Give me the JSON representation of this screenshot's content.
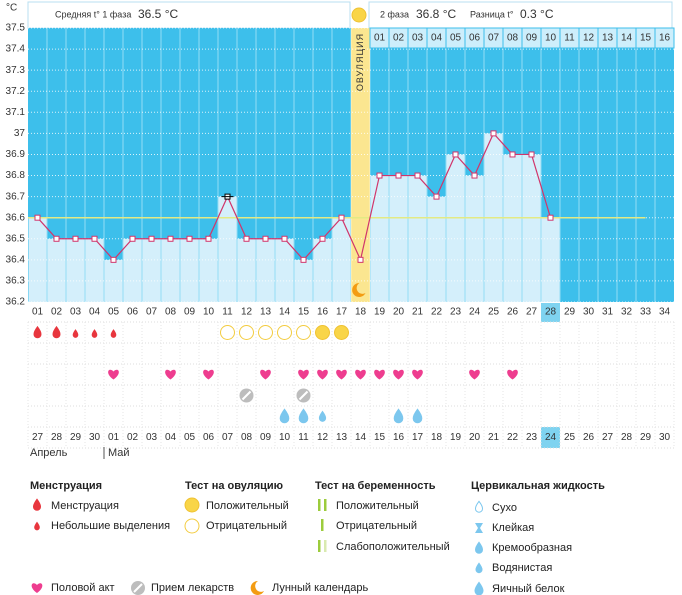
{
  "chart_data": {
    "type": "line",
    "y_unit": "°C",
    "categories": [
      "01",
      "02",
      "03",
      "04",
      "05",
      "06",
      "07",
      "08",
      "09",
      "10",
      "11",
      "12",
      "13",
      "14",
      "15",
      "16",
      "17",
      "18",
      "19",
      "20",
      "21",
      "22",
      "23",
      "24",
      "25",
      "26",
      "27",
      "28",
      "29",
      "30",
      "31",
      "32",
      "33",
      "34"
    ],
    "values": [
      36.6,
      36.5,
      36.5,
      36.5,
      36.4,
      36.5,
      36.5,
      36.5,
      36.5,
      36.5,
      36.7,
      36.5,
      36.5,
      36.5,
      36.4,
      36.5,
      36.6,
      36.4,
      36.8,
      36.8,
      36.8,
      36.7,
      36.9,
      36.8,
      37.0,
      36.9,
      36.9,
      36.6,
      null,
      null,
      null,
      null,
      null,
      null
    ],
    "color": "#d1356b",
    "ylim": [
      36.2,
      37.5
    ],
    "yticks": [
      36.2,
      36.3,
      36.4,
      36.5,
      36.6,
      36.7,
      36.8,
      36.9,
      37,
      37.1,
      37.2,
      37.3,
      37.4,
      37.5
    ],
    "grid": true,
    "coverline": 36.6,
    "ovulation_day": 18,
    "ovulation_label": "ОВУЛЯЦИЯ",
    "luteal_days": [
      "01",
      "02",
      "03",
      "04",
      "05",
      "06",
      "07",
      "08",
      "09",
      "10",
      "11",
      "12",
      "13",
      "14",
      "15",
      "16"
    ],
    "current_day": 28,
    "selected_day": 11
  },
  "header": {
    "phase1_label": "Средняя t° 1 фаза",
    "phase1_value": "36.5 °C",
    "phase2_label": "2 фаза",
    "phase2_value": "36.8 °C",
    "diff_label": "Разница t°",
    "diff_value": "0.3 °C"
  },
  "events": {
    "menstruation": {
      "heavy": [
        1,
        2
      ],
      "light": [
        3,
        4,
        5
      ]
    },
    "ovulation_test": {
      "positive": [
        16,
        17
      ],
      "negative": [
        11,
        12,
        13,
        14,
        15
      ]
    },
    "intercourse": [
      5,
      8,
      10,
      13,
      15,
      16,
      17,
      18,
      19,
      20,
      21,
      24,
      26
    ],
    "medication": [
      12,
      15
    ],
    "cervical_fluid": {
      "watery": [
        16
      ],
      "egg_white": [
        14,
        15,
        20,
        21
      ]
    },
    "moon": [
      18
    ]
  },
  "calendar": {
    "dates": [
      "27",
      "28",
      "29",
      "30",
      "01",
      "02",
      "03",
      "04",
      "05",
      "06",
      "07",
      "08",
      "09",
      "10",
      "11",
      "12",
      "13",
      "14",
      "15",
      "16",
      "17",
      "18",
      "19",
      "20",
      "21",
      "22",
      "23",
      "24",
      "25",
      "26",
      "27",
      "28",
      "29",
      "30"
    ],
    "holiday": [
      true,
      true,
      false,
      false,
      false,
      false,
      false,
      true,
      true,
      false,
      false,
      false,
      false,
      false,
      true,
      true,
      false,
      false,
      false,
      false,
      false,
      true,
      true,
      false,
      false,
      false,
      false,
      false,
      true,
      true,
      false,
      false,
      false,
      false
    ],
    "months": [
      "Апрель",
      "Май"
    ]
  },
  "legend": {
    "menstruation": {
      "title": "Менструация",
      "items": [
        "Менструация",
        "Небольшие выделения"
      ]
    },
    "ovulation_test": {
      "title": "Тест на овуляцию",
      "items": [
        "Положительный",
        "Отрицательный"
      ]
    },
    "pregnancy_test": {
      "title": "Тест на беременность",
      "items": [
        "Положительный",
        "Отрицательный",
        "Слабоположительный"
      ]
    },
    "cervical_fluid": {
      "title": "Цервикальная жидкость",
      "items": [
        "Сухо",
        "Клейкая",
        "Кремообразная",
        "Водянистая",
        "Яичный белок"
      ]
    },
    "other": [
      "Половой акт",
      "Прием лекарств",
      "Лунный календарь"
    ]
  }
}
